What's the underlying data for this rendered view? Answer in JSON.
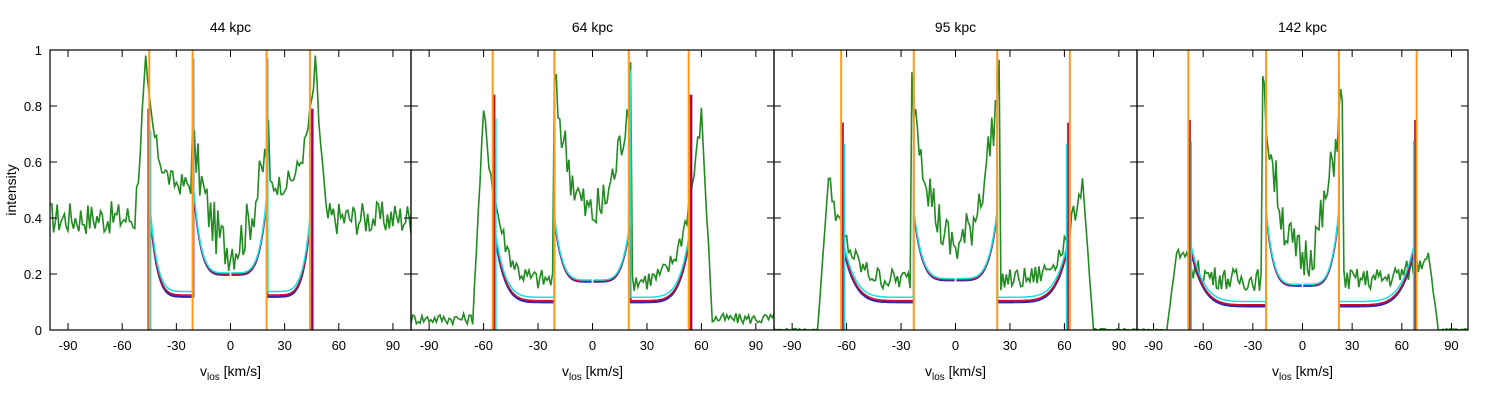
{
  "figure": {
    "ylabel": "intensity",
    "xlabel_main": "v",
    "xlabel_sub": "los",
    "xlabel_unit": " [km/s]"
  },
  "colors": {
    "purple": "#7b0099",
    "red": "#c8102e",
    "blue": "#2a2aa8",
    "cyan": "#16e0e0",
    "green": "#228b22",
    "orange": "#ff9a1a"
  },
  "chart_data": [
    {
      "type": "line",
      "title": "44 kpc",
      "xlim": [
        -100,
        100
      ],
      "ylim": [
        0,
        1
      ],
      "xticks": [
        -90,
        -60,
        -30,
        0,
        30,
        60,
        90
      ],
      "yticks": [
        0,
        0.2,
        0.4,
        0.6,
        0.8,
        1
      ],
      "vertical_lines": [
        -45,
        -21,
        20,
        44
      ],
      "model": {
        "inner": 20.5,
        "outer": 45,
        "center": 0.2,
        "edge_inner": 0.5,
        "edge_outer": 0.12,
        "outer_low": 0.45,
        "spike_inner": 0.97,
        "spike_outer": 0.79
      },
      "observed": {
        "baseline": 0.4,
        "baseline_noise": 0.06,
        "center": 0.3,
        "inner_peak": 0.72,
        "outer_peak": 0.93,
        "inner_edge": 22,
        "outer_edge": 47
      }
    },
    {
      "type": "line",
      "title": "64 kpc",
      "xlim": [
        -100,
        100
      ],
      "ylim": [
        0,
        1
      ],
      "xticks": [
        -90,
        -60,
        -30,
        0,
        30,
        60,
        90
      ],
      "yticks": [
        0,
        0.2,
        0.4,
        0.6,
        0.8,
        1
      ],
      "vertical_lines": [
        -55,
        -21,
        20,
        53
      ],
      "model": {
        "inner": 21,
        "outer": 54,
        "center": 0.175,
        "edge_inner": 0.4,
        "edge_outer": 0.1,
        "outer_low": 0.35,
        "spike_inner": 0.93,
        "spike_outer": 0.84
      },
      "observed": {
        "baseline": 0.04,
        "baseline_noise": 0.02,
        "center": 0.42,
        "inner_peak": 0.92,
        "outer_peak": 0.78,
        "inner_edge": 22,
        "outer_edge": 60
      }
    },
    {
      "type": "line",
      "title": "95 kpc",
      "xlim": [
        -100,
        100
      ],
      "ylim": [
        0,
        1
      ],
      "xticks": [
        -90,
        -60,
        -30,
        0,
        30,
        60,
        90
      ],
      "yticks": [
        0,
        0.2,
        0.4,
        0.6,
        0.8,
        1
      ],
      "vertical_lines": [
        -63,
        -23,
        23,
        63
      ],
      "model": {
        "inner": 23,
        "outer": 62,
        "center": 0.18,
        "edge_inner": 0.42,
        "edge_outer": 0.1,
        "outer_low": 0.3,
        "spike_inner": 0.93,
        "spike_outer": 0.74
      },
      "observed": {
        "baseline": 0.0,
        "baseline_noise": 0.005,
        "center": 0.3,
        "inner_peak": 0.93,
        "outer_peak": 0.54,
        "inner_edge": 25,
        "outer_edge": 70
      }
    },
    {
      "type": "line",
      "title": "142 kpc",
      "xlim": [
        -100,
        100
      ],
      "ylim": [
        0,
        1
      ],
      "xticks": [
        -90,
        -60,
        -30,
        0,
        30,
        60,
        90
      ],
      "yticks": [
        0,
        0.2,
        0.4,
        0.6,
        0.8,
        1
      ],
      "vertical_lines": [
        -69,
        -22,
        22,
        69
      ],
      "model": {
        "inner": 22,
        "outer": 68,
        "center": 0.16,
        "edge_inner": 0.42,
        "edge_outer": 0.085,
        "outer_low": 0.3,
        "spike_inner": 0.92,
        "spike_outer": 0.75
      },
      "observed": {
        "baseline": 0.0,
        "baseline_noise": 0.005,
        "center": 0.26,
        "inner_peak": 0.9,
        "outer_peak": 0.28,
        "inner_edge": 25,
        "outer_edge": 76
      }
    }
  ]
}
